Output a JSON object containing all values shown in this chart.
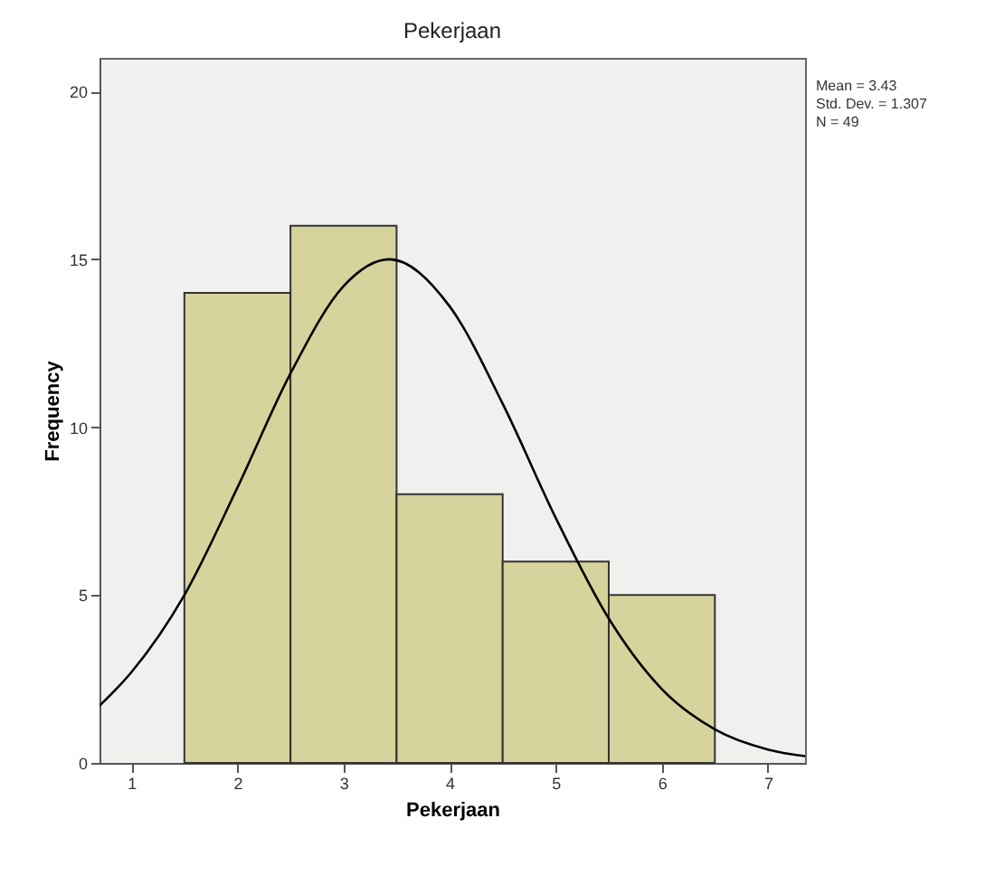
{
  "chart_data": {
    "type": "histogram",
    "title": "Pekerjaan",
    "xlabel": "Pekerjaan",
    "ylabel": "Frequency",
    "bins": [
      1.5,
      2.5,
      3.5,
      4.5,
      5.5,
      6.5
    ],
    "values": [
      14,
      16,
      8,
      6,
      5
    ],
    "color": "#d6d49c",
    "series": [
      {
        "type": "line",
        "color": "#000000",
        "x": [
          0.7,
          1.0,
          1.5,
          2.0,
          2.5,
          3.0,
          3.43,
          4.0,
          4.5,
          5.0,
          5.5,
          6.0,
          6.5,
          7.0,
          7.35
        ],
        "values": [
          1.7,
          2.7,
          5.0,
          8.2,
          11.6,
          14.2,
          15.0,
          13.6,
          10.7,
          7.3,
          4.3,
          2.2,
          1.0,
          0.4,
          0.2
        ]
      }
    ],
    "xlim": [
      0.7,
      7.35
    ],
    "xticks": [
      1,
      2,
      3,
      4,
      5,
      6,
      7
    ],
    "ylim": [
      0,
      21
    ],
    "yticks": [
      0,
      5,
      10,
      15,
      20
    ],
    "annotations": [
      "Mean = 3.43",
      "Std. Dev. = 1.307",
      "N = 49"
    ]
  }
}
